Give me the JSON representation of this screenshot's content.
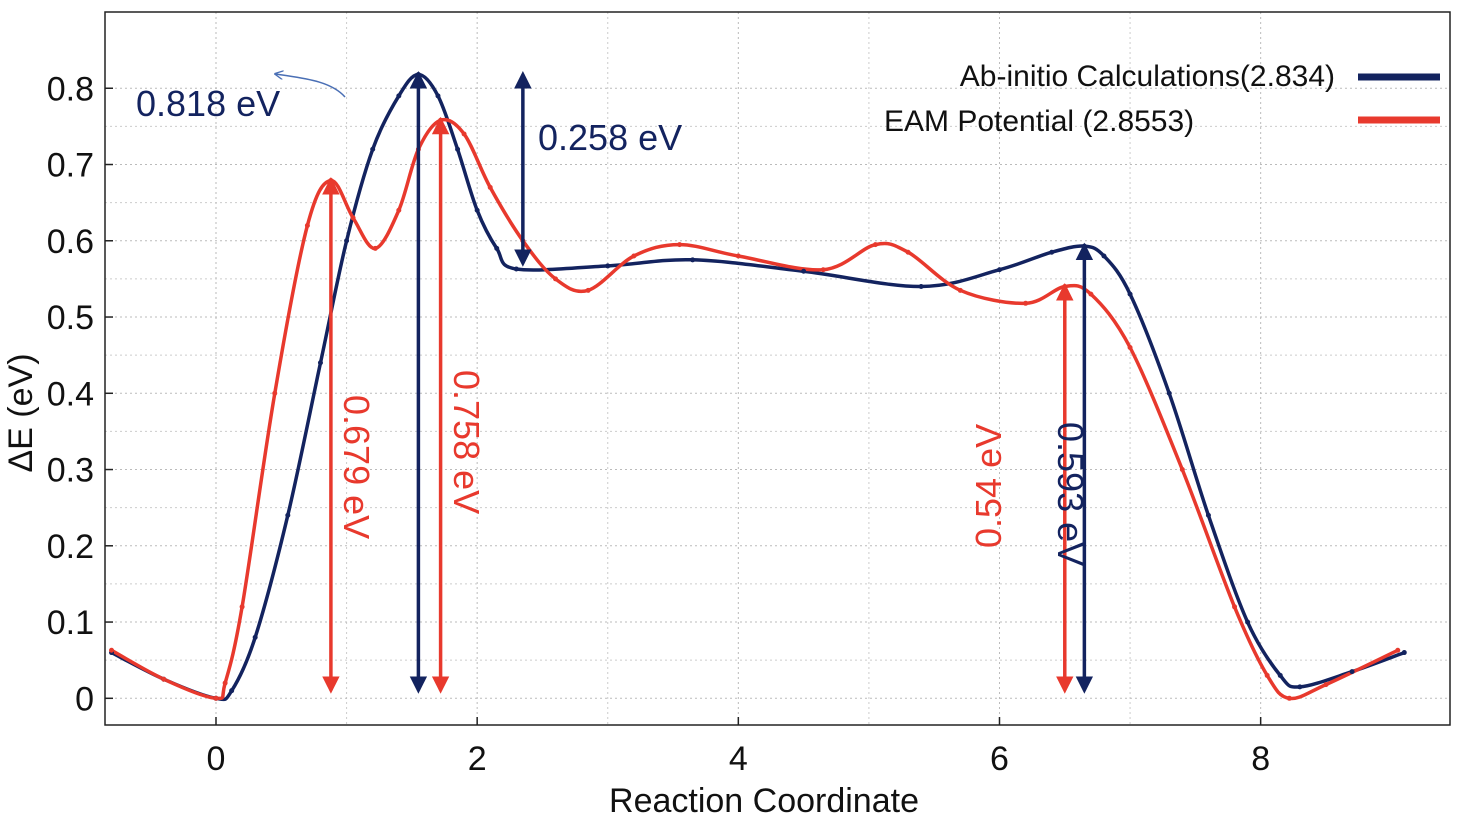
{
  "chart_data": {
    "type": "line",
    "title": "",
    "xlabel": "Reaction Coordinate",
    "ylabel": "ΔE (eV)",
    "xlim": [
      -0.85,
      9.45
    ],
    "ylim": [
      -0.035,
      0.9
    ],
    "xticks": [
      0,
      2,
      4,
      6,
      8
    ],
    "yticks": [
      0,
      0.1,
      0.2,
      0.3,
      0.4,
      0.5,
      0.6,
      0.7,
      0.8
    ],
    "xtick_labels": [
      "0",
      "2",
      "4",
      "6",
      "8"
    ],
    "ytick_labels": [
      "0",
      "0.1",
      "0.2",
      "0.3",
      "0.4",
      "0.5",
      "0.6",
      "0.7",
      "0.8"
    ],
    "grid": true,
    "legend_position": "top-right",
    "series": [
      {
        "name": "Ab-initio Calculations(2.834)",
        "color": "#13235f",
        "x": [
          -0.8,
          -0.4,
          0.0,
          0.12,
          0.3,
          0.55,
          0.8,
          1.0,
          1.2,
          1.4,
          1.55,
          1.7,
          1.85,
          2.0,
          2.15,
          2.3,
          3.0,
          3.65,
          4.5,
          5.4,
          6.0,
          6.4,
          6.65,
          6.8,
          7.0,
          7.3,
          7.6,
          7.9,
          8.15,
          8.3,
          8.7,
          9.1
        ],
        "y": [
          0.06,
          0.025,
          0.0,
          0.01,
          0.08,
          0.24,
          0.44,
          0.6,
          0.72,
          0.79,
          0.818,
          0.79,
          0.72,
          0.64,
          0.59,
          0.563,
          0.567,
          0.575,
          0.56,
          0.54,
          0.562,
          0.585,
          0.593,
          0.58,
          0.53,
          0.4,
          0.24,
          0.1,
          0.03,
          0.015,
          0.035,
          0.06
        ]
      },
      {
        "name": "EAM Potential (2.8553)",
        "color": "#e8392d",
        "x": [
          -0.8,
          -0.4,
          0.0,
          0.07,
          0.2,
          0.45,
          0.7,
          0.88,
          1.05,
          1.22,
          1.4,
          1.55,
          1.72,
          1.9,
          2.1,
          2.35,
          2.6,
          2.85,
          3.2,
          3.55,
          4.0,
          4.65,
          5.05,
          5.3,
          5.7,
          6.2,
          6.5,
          6.7,
          7.0,
          7.4,
          7.8,
          8.05,
          8.22,
          8.5,
          9.05
        ],
        "y": [
          0.063,
          0.025,
          0.0,
          0.02,
          0.12,
          0.4,
          0.62,
          0.679,
          0.63,
          0.59,
          0.64,
          0.72,
          0.758,
          0.74,
          0.67,
          0.6,
          0.55,
          0.535,
          0.58,
          0.595,
          0.58,
          0.562,
          0.595,
          0.585,
          0.535,
          0.518,
          0.54,
          0.53,
          0.46,
          0.3,
          0.12,
          0.03,
          0.0,
          0.018,
          0.063
        ]
      }
    ],
    "annotations": [
      {
        "id": "ab-peak",
        "text": "0.818 eV",
        "color": "#13235f"
      },
      {
        "id": "ab-second",
        "text": "0.258 eV",
        "color": "#13235f"
      },
      {
        "id": "eam-first",
        "text": "0.679 eV",
        "color": "#e8392d"
      },
      {
        "id": "eam-peak",
        "text": "0.758 eV",
        "color": "#e8392d"
      },
      {
        "id": "eam-last",
        "text": "0.54 eV",
        "color": "#e8392d"
      },
      {
        "id": "ab-last",
        "text": "0.593 eV",
        "color": "#13235f"
      }
    ],
    "arrows": [
      {
        "x": 0.88,
        "y_from": 0.0,
        "y_to": 0.679,
        "color": "#e8392d"
      },
      {
        "x": 1.55,
        "y_from": 0.0,
        "y_to": 0.818,
        "color": "#13235f"
      },
      {
        "x": 1.72,
        "y_from": 0.0,
        "y_to": 0.758,
        "color": "#e8392d"
      },
      {
        "x": 2.35,
        "y_from": 0.56,
        "y_to": 0.818,
        "color": "#13235f"
      },
      {
        "x": 6.5,
        "y_from": 0.0,
        "y_to": 0.54,
        "color": "#e8392d"
      },
      {
        "x": 6.65,
        "y_from": 0.0,
        "y_to": 0.593,
        "color": "#13235f"
      }
    ]
  }
}
